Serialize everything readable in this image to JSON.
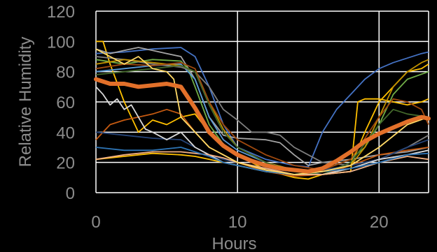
{
  "chart_data": {
    "type": "line",
    "title": "",
    "xlabel": "Hours",
    "ylabel": "Relative Humidity",
    "xlim": [
      0,
      23.5
    ],
    "ylim": [
      0,
      120
    ],
    "x_ticks": [
      "0",
      "10",
      "20"
    ],
    "y_ticks": [
      "0",
      "20",
      "40",
      "60",
      "80",
      "100",
      "120"
    ],
    "grid": "major gridlines on both axes",
    "legend": "none",
    "background": "#000000",
    "gridline_color": "#ffffff",
    "mean_series": {
      "color": "#e2702a",
      "x": [
        0,
        1,
        2,
        3,
        4,
        5,
        6,
        7,
        8,
        9,
        10,
        11,
        12,
        13,
        14,
        15,
        16,
        17,
        18,
        19,
        20,
        21,
        22,
        23,
        23.5
      ],
      "y": [
        75,
        72,
        72,
        70,
        71,
        72,
        70,
        56,
        40,
        31,
        25,
        21,
        18,
        16,
        15,
        14,
        16,
        21,
        27,
        34,
        39,
        43,
        47,
        50,
        49
      ]
    },
    "series": [
      {
        "color": "#4472c4",
        "x": [
          0,
          2,
          4,
          6,
          7,
          8,
          9,
          10,
          12,
          13,
          14,
          15,
          16,
          17,
          18,
          19,
          20,
          21,
          22,
          23,
          23.5
        ],
        "y": [
          92,
          93,
          95,
          96,
          90,
          70,
          45,
          30,
          22,
          20,
          18,
          17,
          40,
          55,
          65,
          75,
          82,
          86,
          89,
          92,
          93
        ]
      },
      {
        "color": "#ffc000",
        "x": [
          0,
          0.5,
          1,
          2,
          3,
          4,
          5,
          6,
          7,
          8,
          9,
          10,
          12,
          14,
          15,
          16,
          18,
          19,
          20,
          21,
          22,
          23,
          23.5
        ],
        "y": [
          100,
          100,
          85,
          60,
          40,
          48,
          45,
          50,
          52,
          40,
          30,
          25,
          15,
          10,
          9,
          12,
          18,
          40,
          60,
          70,
          80,
          82,
          85
        ]
      },
      {
        "color": "#a5a5a5",
        "x": [
          0,
          1,
          2,
          3,
          4,
          5,
          6,
          7,
          8,
          9,
          10,
          12,
          13,
          14,
          15,
          16,
          18,
          20,
          22,
          23.5
        ],
        "y": [
          95,
          92,
          94,
          96,
          94,
          92,
          90,
          75,
          50,
          38,
          36,
          35,
          33,
          25,
          18,
          20,
          22,
          25,
          27,
          30
        ]
      },
      {
        "color": "#70ad47",
        "x": [
          0,
          2,
          4,
          6,
          6.5,
          7,
          8,
          9,
          10,
          12,
          14,
          16,
          18,
          19,
          20,
          21,
          22,
          23.5
        ],
        "y": [
          88,
          85,
          88,
          87,
          82,
          70,
          45,
          32,
          25,
          18,
          14,
          15,
          22,
          30,
          45,
          65,
          75,
          80
        ]
      },
      {
        "color": "#5b9bd5",
        "x": [
          0,
          2,
          4,
          6,
          7,
          8,
          9,
          10,
          12,
          14,
          16,
          18,
          20,
          22,
          23.5
        ],
        "y": [
          80,
          82,
          84,
          85,
          75,
          50,
          35,
          28,
          20,
          15,
          12,
          14,
          20,
          25,
          28
        ]
      },
      {
        "color": "#c55a11",
        "x": [
          0,
          1,
          2,
          3,
          4,
          5,
          6,
          7,
          8,
          9,
          10,
          12,
          14,
          16,
          18,
          20,
          22,
          23.5
        ],
        "y": [
          35,
          45,
          48,
          50,
          52,
          55,
          52,
          40,
          30,
          25,
          20,
          14,
          11,
          12,
          18,
          25,
          28,
          30
        ]
      },
      {
        "color": "#ffc000",
        "x": [
          0,
          2,
          4,
          6,
          7,
          8,
          9,
          10,
          12,
          14,
          16,
          18,
          18.5,
          19,
          20,
          21,
          22,
          23,
          23.5
        ],
        "y": [
          22,
          24,
          26,
          25,
          24,
          22,
          20,
          18,
          14,
          12,
          12,
          14,
          60,
          62,
          62,
          60,
          58,
          60,
          62
        ]
      },
      {
        "color": "#7f7f7f",
        "x": [
          0,
          2,
          4,
          6,
          7,
          8,
          9,
          10,
          11,
          12,
          13,
          14,
          16,
          18,
          20,
          22,
          23.5
        ],
        "y": [
          90,
          88,
          85,
          83,
          80,
          70,
          55,
          48,
          40,
          40,
          38,
          30,
          20,
          18,
          22,
          30,
          38
        ]
      },
      {
        "color": "#bf9000",
        "x": [
          0,
          2,
          4,
          6,
          7,
          8,
          9,
          10,
          12,
          14,
          16,
          18,
          19,
          20,
          21,
          22,
          23,
          23.5
        ],
        "y": [
          85,
          88,
          86,
          84,
          80,
          60,
          42,
          30,
          20,
          15,
          14,
          18,
          30,
          50,
          70,
          80,
          86,
          88
        ]
      },
      {
        "color": "#264478",
        "x": [
          0,
          2,
          4,
          6,
          7,
          8,
          9,
          10,
          12,
          14,
          16,
          18,
          20,
          22,
          23.5
        ],
        "y": [
          40,
          38,
          36,
          35,
          30,
          25,
          22,
          20,
          16,
          14,
          15,
          18,
          22,
          30,
          35
        ]
      },
      {
        "color": "#9e480e",
        "x": [
          0,
          2,
          4,
          6,
          7,
          8,
          9,
          10,
          12,
          14,
          16,
          18,
          20,
          21,
          22,
          23,
          23.5
        ],
        "y": [
          82,
          85,
          84,
          86,
          82,
          60,
          45,
          35,
          25,
          18,
          15,
          22,
          50,
          62,
          60,
          55,
          45
        ]
      },
      {
        "color": "#43682b",
        "x": [
          0,
          2,
          4,
          6,
          7,
          8,
          9,
          10,
          12,
          14,
          16,
          18,
          20,
          21,
          22,
          23.5
        ],
        "y": [
          78,
          80,
          82,
          84,
          80,
          58,
          40,
          30,
          20,
          14,
          12,
          20,
          45,
          55,
          52,
          50
        ]
      },
      {
        "color": "#d9d9d9",
        "x": [
          0,
          0.5,
          1,
          1.5,
          2,
          2.5,
          3,
          3.5,
          4,
          5,
          6,
          7,
          8,
          9,
          10,
          12,
          14,
          16,
          18,
          20,
          22,
          23.5
        ],
        "y": [
          70,
          65,
          58,
          62,
          55,
          58,
          50,
          42,
          40,
          35,
          40,
          30,
          25,
          20,
          18,
          14,
          12,
          12,
          16,
          22,
          25,
          28
        ]
      },
      {
        "color": "#f4b183",
        "x": [
          0,
          2,
          4,
          6,
          7,
          8,
          9,
          10,
          12,
          14,
          16,
          18,
          20,
          22,
          23.5
        ],
        "y": [
          22,
          25,
          27,
          27,
          26,
          25,
          23,
          20,
          16,
          12,
          12,
          14,
          20,
          24,
          22
        ]
      },
      {
        "color": "#2e75b6",
        "x": [
          0,
          2,
          4,
          6,
          7,
          8,
          9,
          10,
          12,
          14,
          16,
          18,
          20,
          22,
          23.5
        ],
        "y": [
          30,
          28,
          28,
          30,
          27,
          24,
          20,
          18,
          14,
          12,
          14,
          16,
          20,
          25,
          26
        ]
      },
      {
        "color": "#ffd966",
        "x": [
          0,
          1,
          2,
          3,
          4,
          5,
          5.5,
          6,
          7,
          8,
          9,
          10,
          12,
          14,
          16,
          18,
          20,
          22,
          23.5
        ],
        "y": [
          95,
          90,
          85,
          90,
          82,
          80,
          75,
          50,
          40,
          30,
          25,
          20,
          15,
          12,
          14,
          18,
          30,
          45,
          50
        ]
      }
    ]
  }
}
